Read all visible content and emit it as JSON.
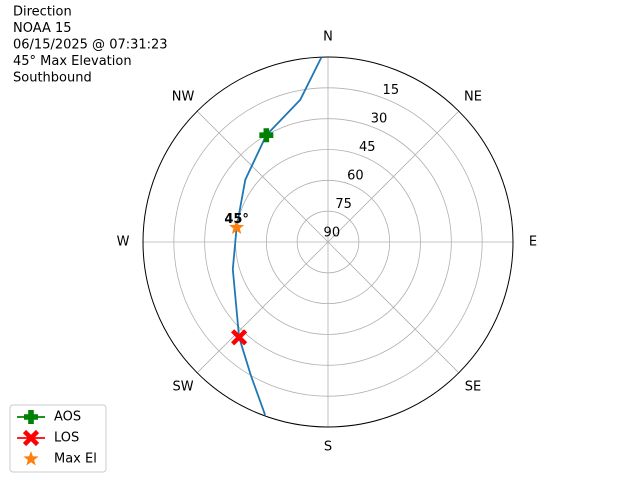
{
  "chart_data": {
    "type": "polar",
    "title_lines": [
      "Direction",
      "NOAA 15",
      "06/15/2025 @ 07:31:23",
      "45° Max Elevation",
      "Southbound"
    ],
    "xticks": [
      {
        "value": 0,
        "label": "N"
      },
      {
        "value": 45,
        "label": "NE"
      },
      {
        "value": 90,
        "label": "E"
      },
      {
        "value": 135,
        "label": "SE"
      },
      {
        "value": 180,
        "label": "S"
      },
      {
        "value": 225,
        "label": "SW"
      },
      {
        "value": 270,
        "label": "W"
      },
      {
        "value": 315,
        "label": "NW"
      }
    ],
    "ylim": [
      90,
      0
    ],
    "yticks": [
      90,
      75,
      60,
      45,
      30,
      15
    ],
    "grid": true,
    "legend": "lower left",
    "track": {
      "color": "#1f77b4",
      "x": [
        358,
        349,
        330,
        307,
        279,
        254,
        223,
        210,
        200
      ],
      "values": [
        0,
        19.5,
        30,
        39.6,
        45,
        41.8,
        26.6,
        15,
        0.5
      ]
    },
    "series": [
      {
        "name": "AOS",
        "color": "#008000",
        "marker": "plus",
        "x": [
          330
        ],
        "values": [
          30
        ]
      },
      {
        "name": "LOS",
        "color": "#ff0000",
        "marker": "x",
        "x": [
          223
        ],
        "values": [
          26.6
        ]
      },
      {
        "name": "Max El",
        "color": "#ff7f0e",
        "marker": "star",
        "x": [
          279
        ],
        "values": [
          45
        ],
        "value_labels": [
          "45°"
        ]
      }
    ]
  }
}
